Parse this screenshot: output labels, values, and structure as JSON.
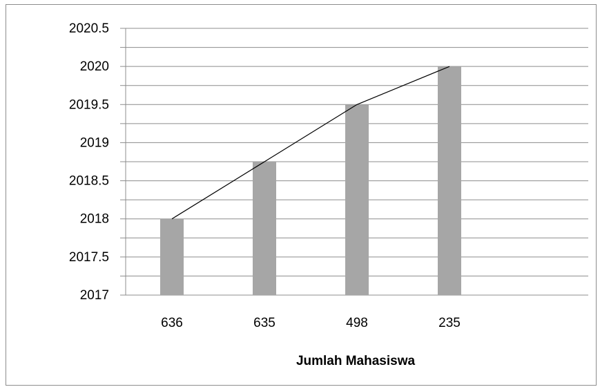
{
  "chart_data": {
    "type": "bar",
    "categories": [
      "636",
      "635",
      "498",
      "235"
    ],
    "values": [
      2018,
      2018.75,
      2019.5,
      2020
    ],
    "line_overlay": true,
    "xlabel": "Jumlah Mahasiswa",
    "ylabel": "",
    "title": "",
    "ylim": [
      2017,
      2020.5
    ],
    "y_ticks": [
      {
        "value": 2017,
        "label": "2017"
      },
      {
        "value": 2017.5,
        "label": "2017.5"
      },
      {
        "value": 2018,
        "label": "2018"
      },
      {
        "value": 2018.5,
        "label": "2018.5"
      },
      {
        "value": 2019,
        "label": "2019"
      },
      {
        "value": 2019.5,
        "label": "2019.5"
      },
      {
        "value": 2020,
        "label": "2020"
      },
      {
        "value": 2020.5,
        "label": "2020.5"
      }
    ],
    "gridlines": true,
    "grid_step": 0.25,
    "legend": "none",
    "colors": {
      "bar": "#a6a6a6",
      "grid": "#8c8c8c",
      "line": "#000000",
      "frame": "#8c8c8c"
    }
  }
}
